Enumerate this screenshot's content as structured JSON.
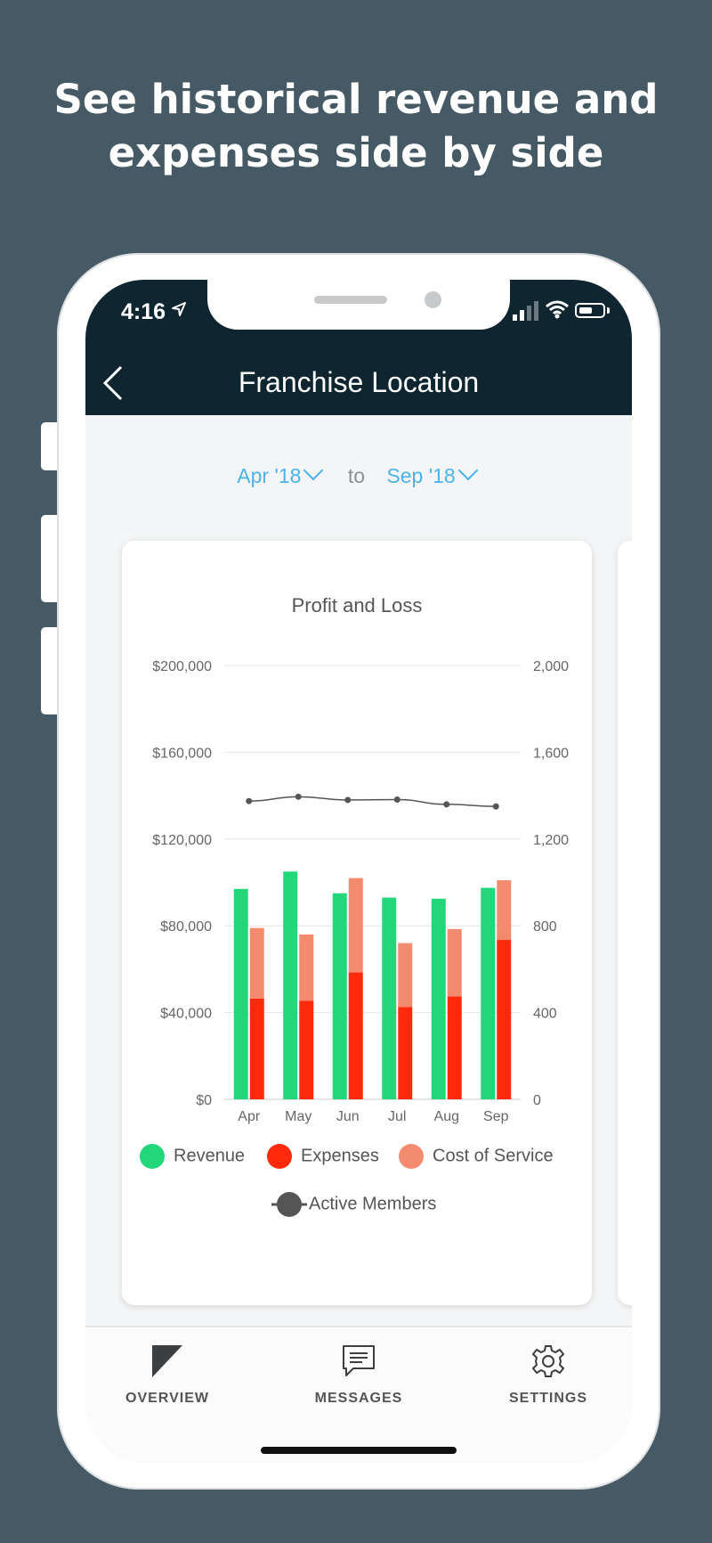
{
  "headline": {
    "line1": "See historical revenue and",
    "line2": "expenses side by side"
  },
  "status": {
    "time": "4:16"
  },
  "nav": {
    "title": "Franchise Location",
    "back_icon": "chevron-left-icon"
  },
  "date_range": {
    "from": "Apr '18",
    "separator": "to",
    "to": "Sep '18"
  },
  "chart_data": {
    "type": "bar",
    "title": "Profit and Loss",
    "categories": [
      "Apr",
      "May",
      "Jun",
      "Jul",
      "Aug",
      "Sep"
    ],
    "y_left": {
      "min": 0,
      "max": 200000,
      "ticks": [
        "$0",
        "$40,000",
        "$80,000",
        "$120,000",
        "$160,000",
        "$200,000"
      ]
    },
    "y_right": {
      "min": 0,
      "max": 2000,
      "ticks": [
        "0",
        "400",
        "800",
        "1,200",
        "1,600",
        "2,000"
      ]
    },
    "series": [
      {
        "name": "Revenue",
        "kind": "bar",
        "color": "#22d67a",
        "values": [
          97000,
          105000,
          95000,
          93000,
          92500,
          97500
        ]
      },
      {
        "name": "Expenses",
        "kind": "stacked-bar",
        "color": "#ff2a0c",
        "values": [
          46500,
          45500,
          58500,
          42500,
          47500,
          73500
        ]
      },
      {
        "name": "Cost of Service",
        "kind": "stacked-bar",
        "color": "#f58b6e",
        "values": [
          32500,
          30500,
          43500,
          29500,
          31000,
          27500
        ]
      },
      {
        "name": "Active Members",
        "kind": "line",
        "axis": "right",
        "color": "#555555",
        "values": [
          1375,
          1395,
          1380,
          1382,
          1360,
          1350
        ]
      }
    ],
    "grid": true
  },
  "tabs": [
    {
      "label": "OVERVIEW",
      "icon": "overview-triangle-icon"
    },
    {
      "label": "MESSAGES",
      "icon": "message-bubble-icon"
    },
    {
      "label": "SETTINGS",
      "icon": "gear-icon"
    }
  ]
}
